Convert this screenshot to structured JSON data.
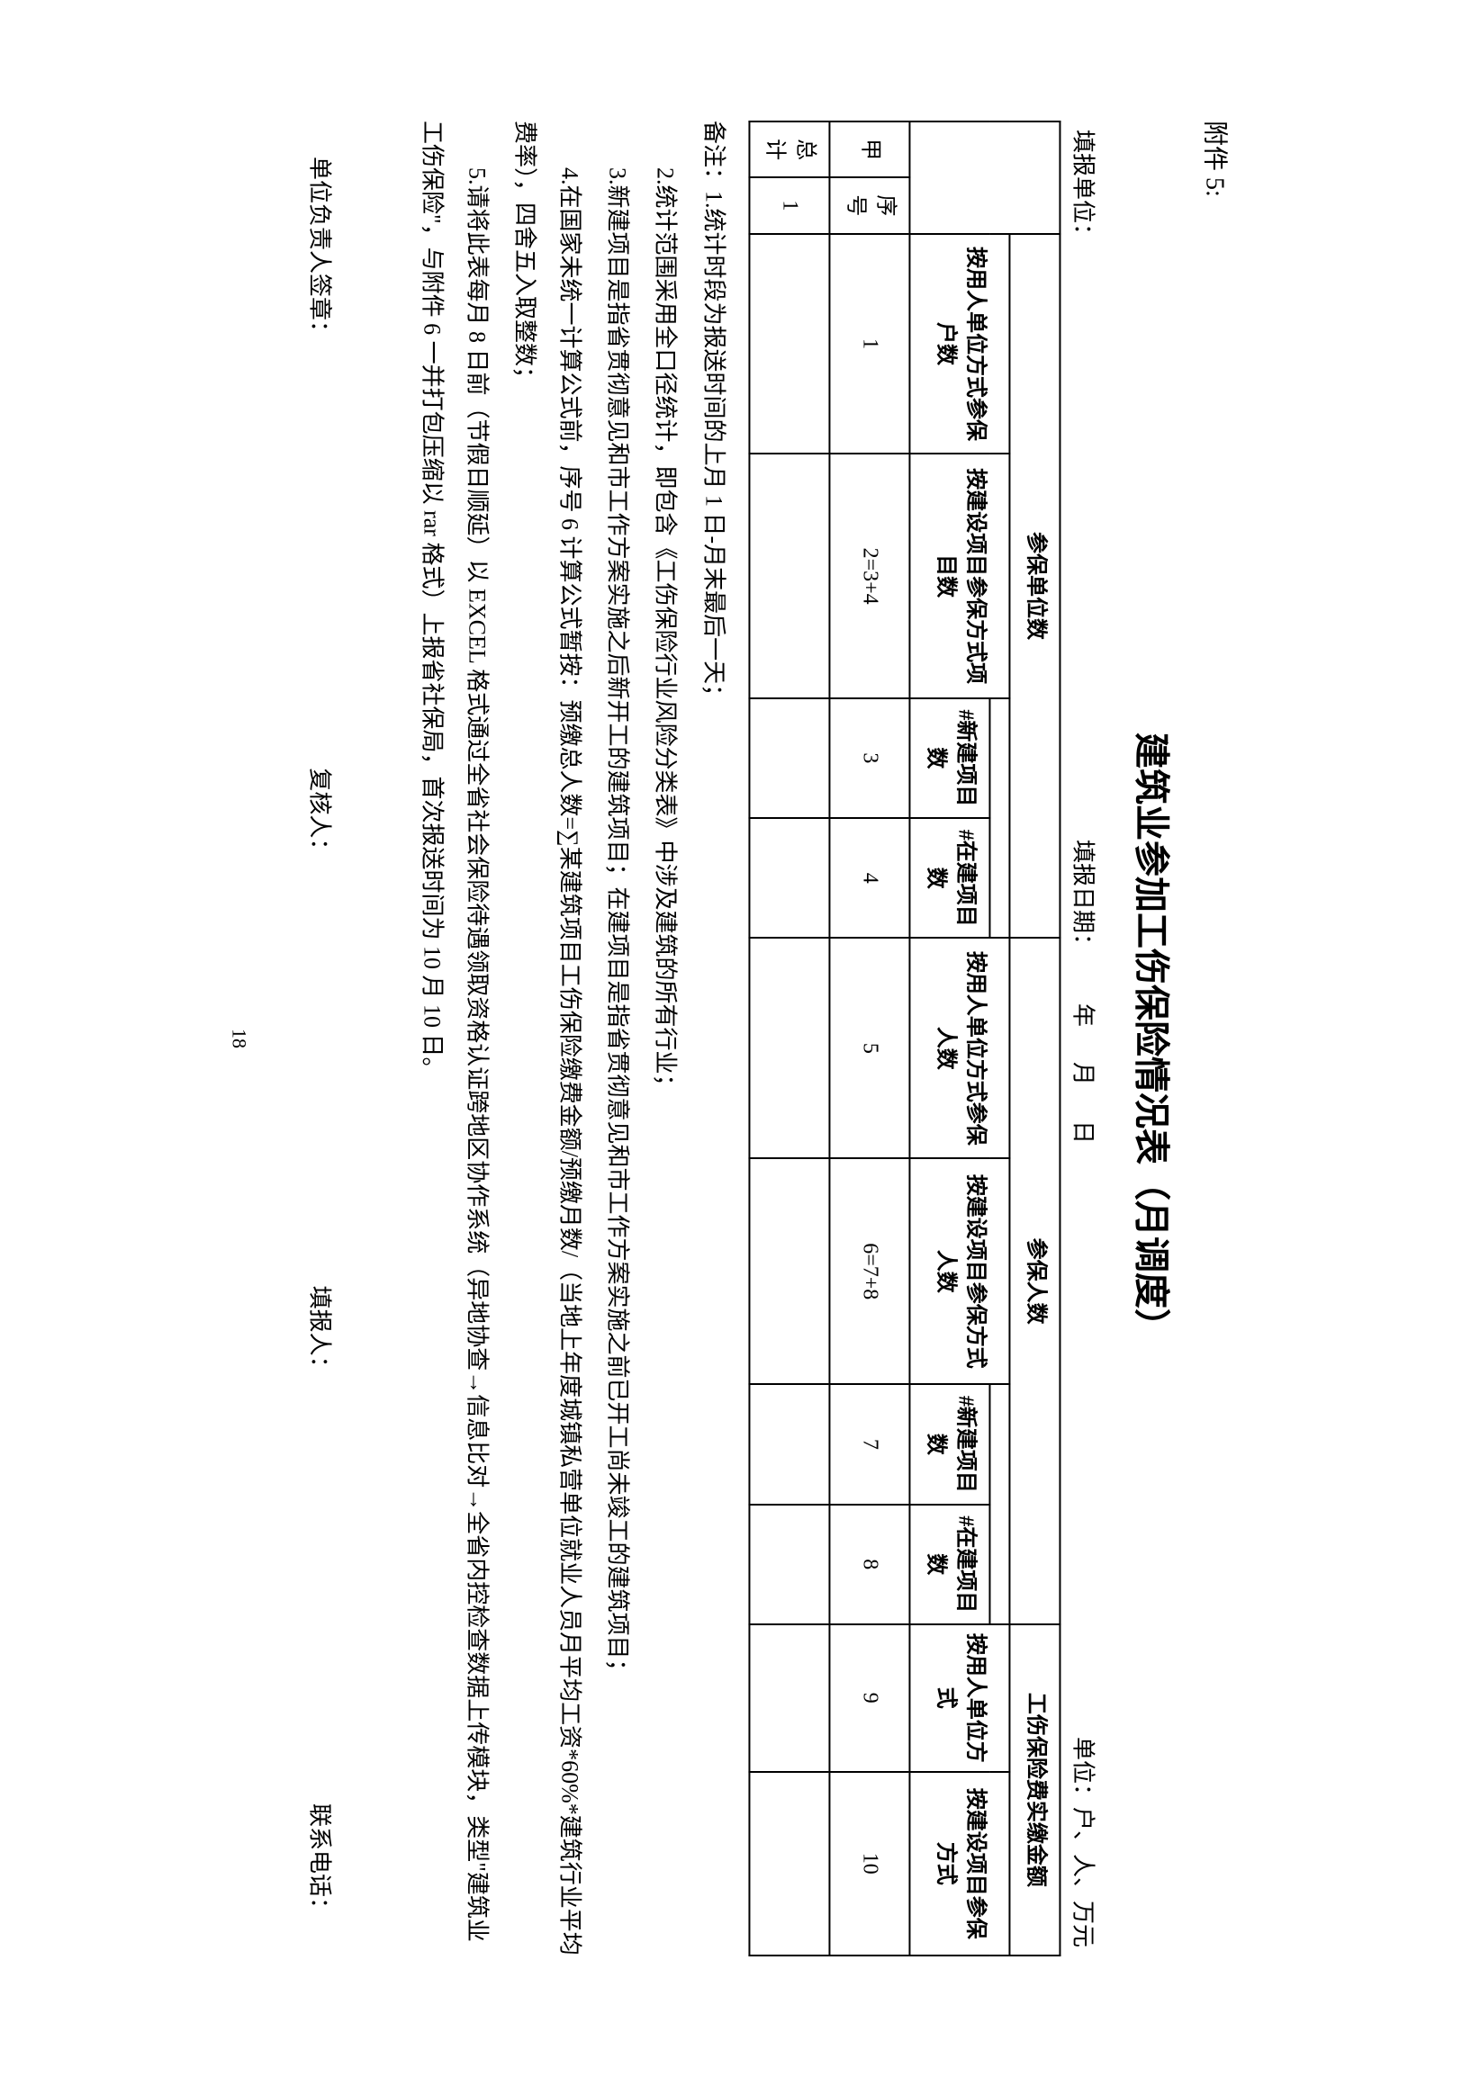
{
  "attachment_label": "附件 5:",
  "title": "建筑业参加工伤保险情况表（月调度）",
  "meta": {
    "filler_unit_label": "填报单位：",
    "fill_date_label": "填报日期：",
    "year_label": "年",
    "month_label": "月",
    "day_label": "日",
    "unit_label": "单位：户、人、万元"
  },
  "table": {
    "headers": {
      "units_group": "参保单位数",
      "people_group": "参保人数",
      "fee_group": "工伤保险费实缴金额",
      "by_employer_units": "按用人单位方式参保户数",
      "by_project_units": "按建设项目参保方式项目数",
      "new_proj_units": "#新建项目数",
      "ongoing_proj_units": "#在建项目数",
      "by_employer_people": "按用人单位方式参保人数",
      "by_project_people": "按建设项目参保方式人数",
      "new_proj_people": "#新建项目数",
      "ongoing_proj_people": "#在建项目数",
      "fee_by_employer": "按用人单位方式",
      "fee_by_project": "按建设项目参保方式",
      "row_label": "甲",
      "seq_label": "序号",
      "total_label": "总计"
    },
    "cols": {
      "c1": "1",
      "c2": "2=3+4",
      "c3": "3",
      "c4": "4",
      "c5": "5",
      "c6": "6=7+8",
      "c7": "7",
      "c8": "8",
      "c9": "9",
      "c10": "10"
    },
    "rows": [
      {
        "label": "1"
      }
    ]
  },
  "notes": {
    "title": "备注：1.统计时段为报送时间的上月 1 日-月末最后一天；",
    "n2": "2.统计范围采用全口径统计，即包含《工伤保险行业风险分类表》中涉及建筑的所有行业；",
    "n3": "3.新建项目是指省贯彻意见和市工作方案实施之后新开工的建筑项目；在建项目是指省贯彻意见和市工作方案实施之前已开工尚未竣工的建筑项目；",
    "n4": "4.在国家未统一计算公式前，序号 6 计算公式暂按：预缴总人数=∑某建筑项目工伤保险缴费金额/预缴月数/（当地上年度城镇私营单位就业人员月平均工资*60%*建筑行业平均费率），四舍五入取整数；",
    "n5": "5.请将此表每月 8 日前（节假日顺延）以 EXCEL 格式通过全省社会保险待遇领取资格认证跨地区协作系统（异地协查→信息比对→全省内控检查数据上传模块，类型\"建筑业工伤保险\"，与附件 6 一并打包压缩以 rar 格式）上报省社保局，首次报送时间为 10 月 10 日。"
  },
  "signatures": {
    "leader": "单位负责人签章：",
    "reviewer": "复核人：",
    "filler": "填报人：",
    "phone": "联系电话："
  },
  "page_number": "18"
}
